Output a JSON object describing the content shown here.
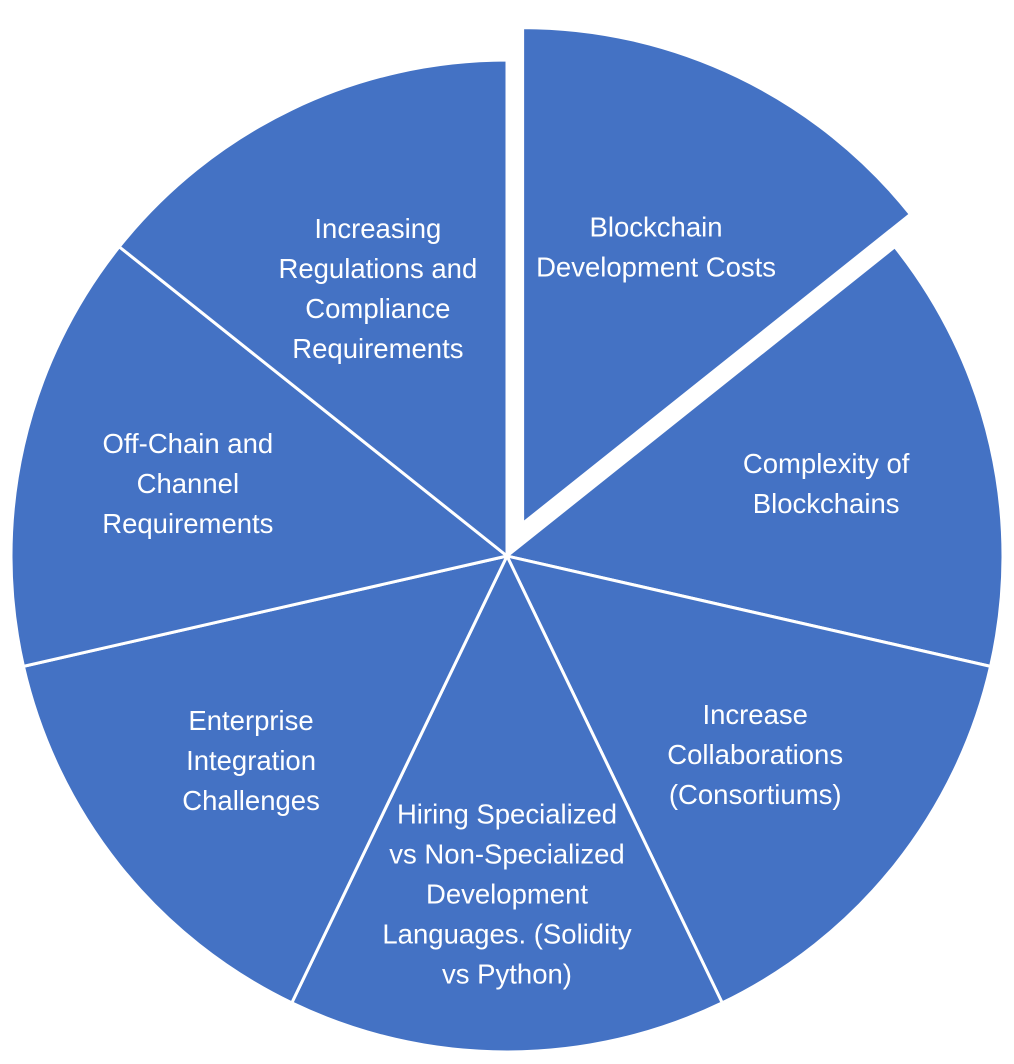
{
  "diagram": {
    "fill_color": "#4472C4",
    "stroke_color": "#ffffff",
    "background": "#ffffff",
    "segments": [
      {
        "id": "blockchain-development-costs",
        "lines": [
          "Blockchain",
          "Development Costs"
        ],
        "exploded": true
      },
      {
        "id": "complexity-of-blockchains",
        "lines": [
          "Complexity of",
          "Blockchains"
        ],
        "exploded": false
      },
      {
        "id": "increase-collaborations",
        "lines": [
          "Increase",
          "Collaborations",
          "(Consortiums)"
        ],
        "exploded": false
      },
      {
        "id": "hiring-specialized",
        "lines": [
          "Hiring Specialized",
          "vs Non-Specialized",
          "Development",
          "Languages. (Solidity",
          "vs Python)"
        ],
        "exploded": false
      },
      {
        "id": "enterprise-integration",
        "lines": [
          "Enterprise",
          "Integration",
          "Challenges"
        ],
        "exploded": false
      },
      {
        "id": "off-chain-channel",
        "lines": [
          "Off-Chain and",
          "Channel",
          "Requirements"
        ],
        "exploded": false
      },
      {
        "id": "increasing-regulations",
        "lines": [
          "Increasing",
          "Regulations and",
          "Compliance",
          "Requirements"
        ],
        "exploded": false
      }
    ]
  }
}
